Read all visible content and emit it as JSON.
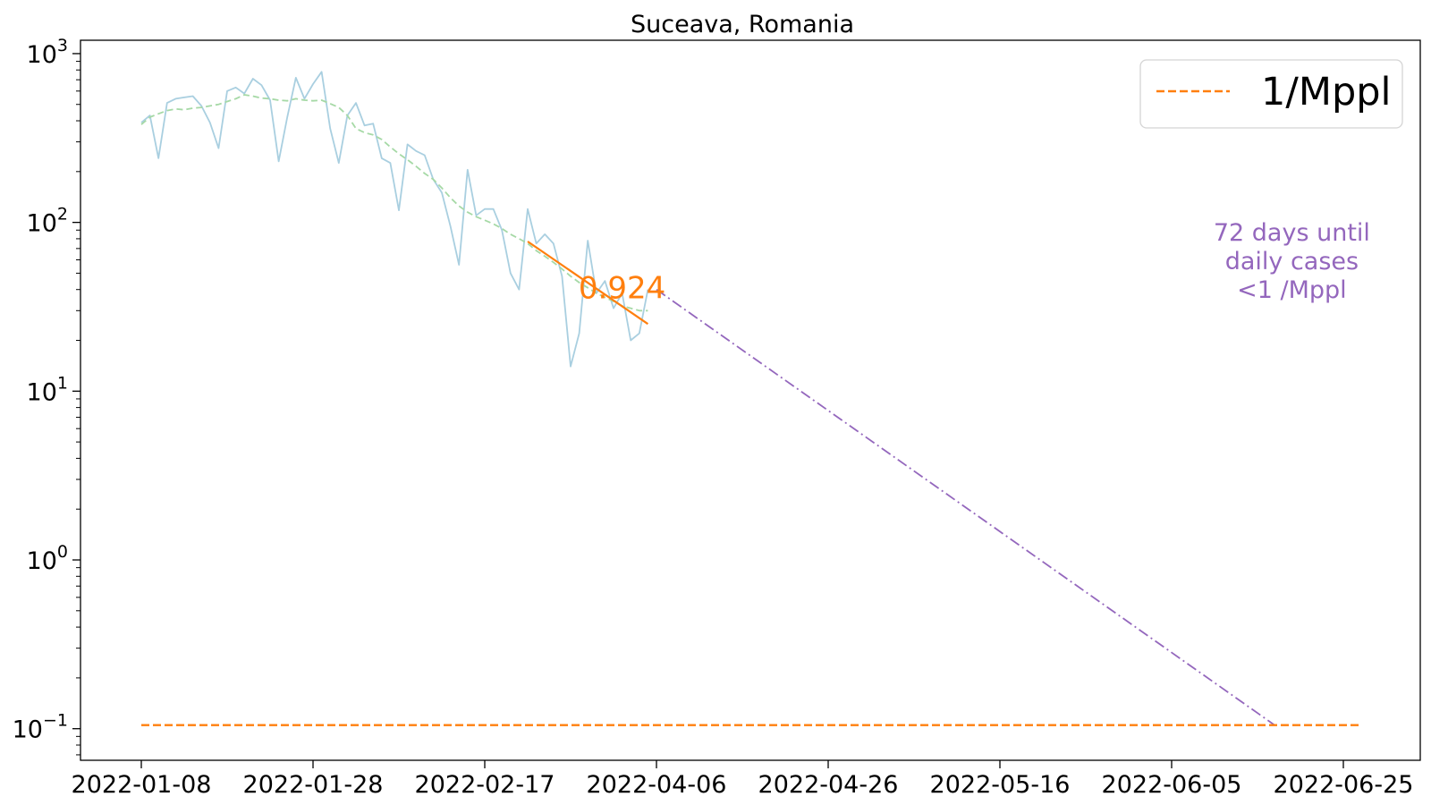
{
  "chart_data": {
    "type": "line",
    "title": "Suceava, Romania",
    "xlabel": "",
    "ylabel": "",
    "yscale": "log",
    "ylim": [
      0.065,
      1200
    ],
    "grid": false,
    "legend_position": "top-right",
    "x_ticks": [
      "2022-01-08",
      "2022-01-28",
      "2022-02-17",
      "2022-04-06",
      "2022-04-26",
      "2022-05-16",
      "2022-06-05",
      "2022-06-25"
    ],
    "y_ticks": [
      {
        "value": 0.1,
        "base": "10",
        "exp": "−1"
      },
      {
        "value": 1,
        "base": "10",
        "exp": "0"
      },
      {
        "value": 10,
        "base": "10",
        "exp": "1"
      },
      {
        "value": 100,
        "base": "10",
        "exp": "2"
      },
      {
        "value": 1000,
        "base": "10",
        "exp": "3"
      }
    ],
    "series": [
      {
        "role": "daily",
        "color": "#a9cfe0",
        "points": [
          [
            0,
            390
          ],
          [
            1,
            430
          ],
          [
            2,
            240
          ],
          [
            3,
            510
          ],
          [
            4,
            540
          ],
          [
            5,
            550
          ],
          [
            6,
            560
          ],
          [
            7,
            490
          ],
          [
            8,
            390
          ],
          [
            9,
            275
          ],
          [
            10,
            600
          ],
          [
            11,
            630
          ],
          [
            12,
            580
          ],
          [
            13,
            710
          ],
          [
            14,
            650
          ],
          [
            15,
            530
          ],
          [
            16,
            230
          ],
          [
            17,
            420
          ],
          [
            18,
            720
          ],
          [
            19,
            540
          ],
          [
            20,
            660
          ],
          [
            21,
            780
          ],
          [
            22,
            360
          ],
          [
            23,
            225
          ],
          [
            24,
            430
          ],
          [
            25,
            510
          ],
          [
            26,
            375
          ],
          [
            27,
            385
          ],
          [
            28,
            240
          ],
          [
            29,
            225
          ],
          [
            30,
            118
          ],
          [
            31,
            290
          ],
          [
            32,
            265
          ],
          [
            33,
            250
          ],
          [
            34,
            180
          ],
          [
            35,
            150
          ],
          [
            36,
            95
          ],
          [
            37,
            56
          ],
          [
            38,
            205
          ],
          [
            39,
            110
          ],
          [
            40,
            120
          ],
          [
            41,
            120
          ],
          [
            42,
            90
          ],
          [
            43,
            50
          ],
          [
            44,
            40
          ],
          [
            45,
            120
          ],
          [
            46,
            75
          ],
          [
            47,
            85
          ],
          [
            48,
            75
          ],
          [
            49,
            48
          ],
          [
            50,
            14
          ],
          [
            51,
            22
          ],
          [
            52,
            78
          ],
          [
            53,
            38
          ],
          [
            54,
            45
          ],
          [
            55,
            31
          ],
          [
            56,
            38
          ],
          [
            57,
            20
          ],
          [
            58,
            22
          ],
          [
            59,
            40
          ]
        ]
      },
      {
        "role": "smoothed",
        "color": "#a6d9a6",
        "points": [
          [
            0,
            380
          ],
          [
            1,
            420
          ],
          [
            2,
            440
          ],
          [
            3,
            460
          ],
          [
            4,
            470
          ],
          [
            5,
            465
          ],
          [
            6,
            475
          ],
          [
            7,
            480
          ],
          [
            8,
            490
          ],
          [
            9,
            500
          ],
          [
            10,
            520
          ],
          [
            11,
            540
          ],
          [
            12,
            570
          ],
          [
            13,
            560
          ],
          [
            14,
            545
          ],
          [
            15,
            540
          ],
          [
            16,
            530
          ],
          [
            17,
            525
          ],
          [
            18,
            540
          ],
          [
            19,
            530
          ],
          [
            20,
            525
          ],
          [
            21,
            530
          ],
          [
            22,
            505
          ],
          [
            23,
            480
          ],
          [
            24,
            430
          ],
          [
            25,
            360
          ],
          [
            26,
            340
          ],
          [
            27,
            330
          ],
          [
            28,
            310
          ],
          [
            29,
            280
          ],
          [
            30,
            255
          ],
          [
            31,
            235
          ],
          [
            32,
            215
          ],
          [
            33,
            195
          ],
          [
            34,
            180
          ],
          [
            35,
            160
          ],
          [
            36,
            140
          ],
          [
            37,
            125
          ],
          [
            38,
            115
          ],
          [
            39,
            108
          ],
          [
            40,
            103
          ],
          [
            41,
            98
          ],
          [
            42,
            92
          ],
          [
            43,
            85
          ],
          [
            44,
            80
          ],
          [
            45,
            75
          ],
          [
            46,
            68
          ],
          [
            47,
            63
          ],
          [
            48,
            58
          ],
          [
            49,
            53
          ],
          [
            50,
            48
          ],
          [
            51,
            44
          ],
          [
            52,
            41
          ],
          [
            53,
            38
          ],
          [
            54,
            36
          ],
          [
            55,
            34
          ],
          [
            56,
            32
          ],
          [
            57,
            31
          ],
          [
            58,
            30
          ],
          [
            59,
            30
          ]
        ]
      },
      {
        "role": "fit",
        "color": "#ff7f0e",
        "points": [
          [
            45,
            77
          ],
          [
            59,
            25
          ]
        ]
      },
      {
        "role": "projection",
        "color": "#9467bd",
        "points": [
          [
            60,
            40
          ],
          [
            132,
            0.105
          ]
        ]
      },
      {
        "role": "threshold",
        "name": "1/Mppl",
        "color": "#ff7f0e",
        "points": [
          [
            0,
            0.105
          ],
          [
            142,
            0.105
          ]
        ]
      }
    ],
    "annotations": [
      {
        "text": "0.924",
        "color": "#ff7f0e",
        "x": 56,
        "y": 41
      },
      {
        "lines": [
          "72 days until",
          "daily cases",
          "<1 /Mppl"
        ],
        "color": "#9467bd",
        "x": 134,
        "y": 78
      }
    ]
  }
}
